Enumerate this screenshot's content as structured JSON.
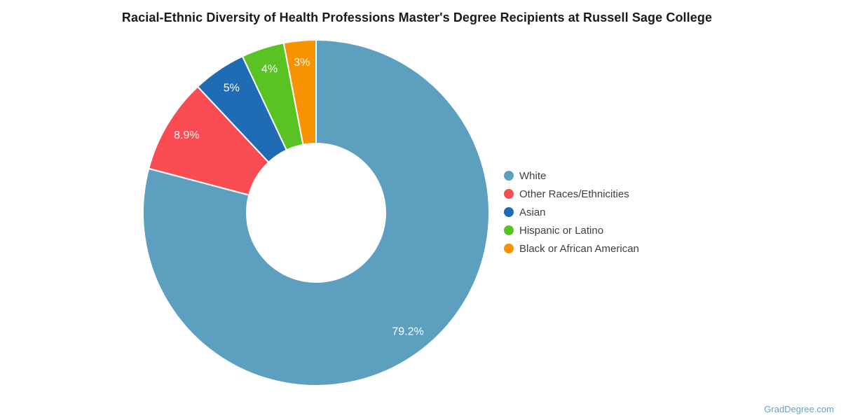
{
  "title": "Racial-Ethnic Diversity of Health Professions Master's Degree Recipients at Russell Sage College",
  "watermark": {
    "label": "GradDegree.com"
  },
  "chart_data": {
    "type": "pie",
    "subtype": "donut",
    "title": "Racial-Ethnic Diversity of Health Professions Master's Degree Recipients at Russell Sage College",
    "categories": [
      "White",
      "Other Races/Ethnicities",
      "Asian",
      "Hispanic or Latino",
      "Black or African American"
    ],
    "values": [
      79.2,
      8.9,
      5,
      4,
      3
    ],
    "slice_labels": [
      "79.2%",
      "8.9%",
      "5%",
      "4%",
      "3%"
    ],
    "colors": [
      "#5C9FBF",
      "#F94D53",
      "#1F6CB5",
      "#58C322",
      "#F79302"
    ],
    "start_angle_deg": 0,
    "direction": "clockwise",
    "donut_hole_ratio": 0.4,
    "slice_label_color": "#ffffff",
    "slice_separator_color": "#ffffff",
    "legend_position": "right",
    "legend_marker": "circle"
  }
}
